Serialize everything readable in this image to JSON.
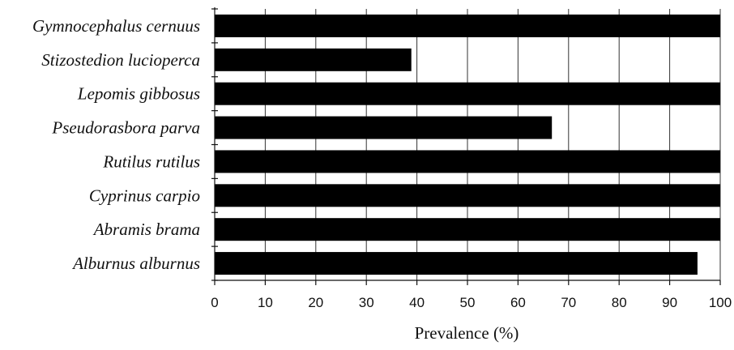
{
  "chart_data": {
    "type": "bar",
    "orientation": "horizontal",
    "title": "",
    "xlabel": "Prevalence (%)",
    "ylabel": "",
    "xlim": [
      0,
      100
    ],
    "xticks": [
      0,
      10,
      20,
      30,
      40,
      50,
      60,
      70,
      80,
      90,
      100
    ],
    "grid": true,
    "bar_color": "#000000",
    "categories": [
      "Gymnocephalus cernuus",
      "Stizostedion lucioperca",
      "Lepomis gibbosus",
      "Pseudorasbora parva",
      "Rutilus rutilus",
      "Cyprinus carpio",
      "Abramis brama",
      "Alburnus alburnus"
    ],
    "values": [
      100,
      38.9,
      100,
      66.7,
      100,
      100,
      100,
      95.5
    ]
  }
}
